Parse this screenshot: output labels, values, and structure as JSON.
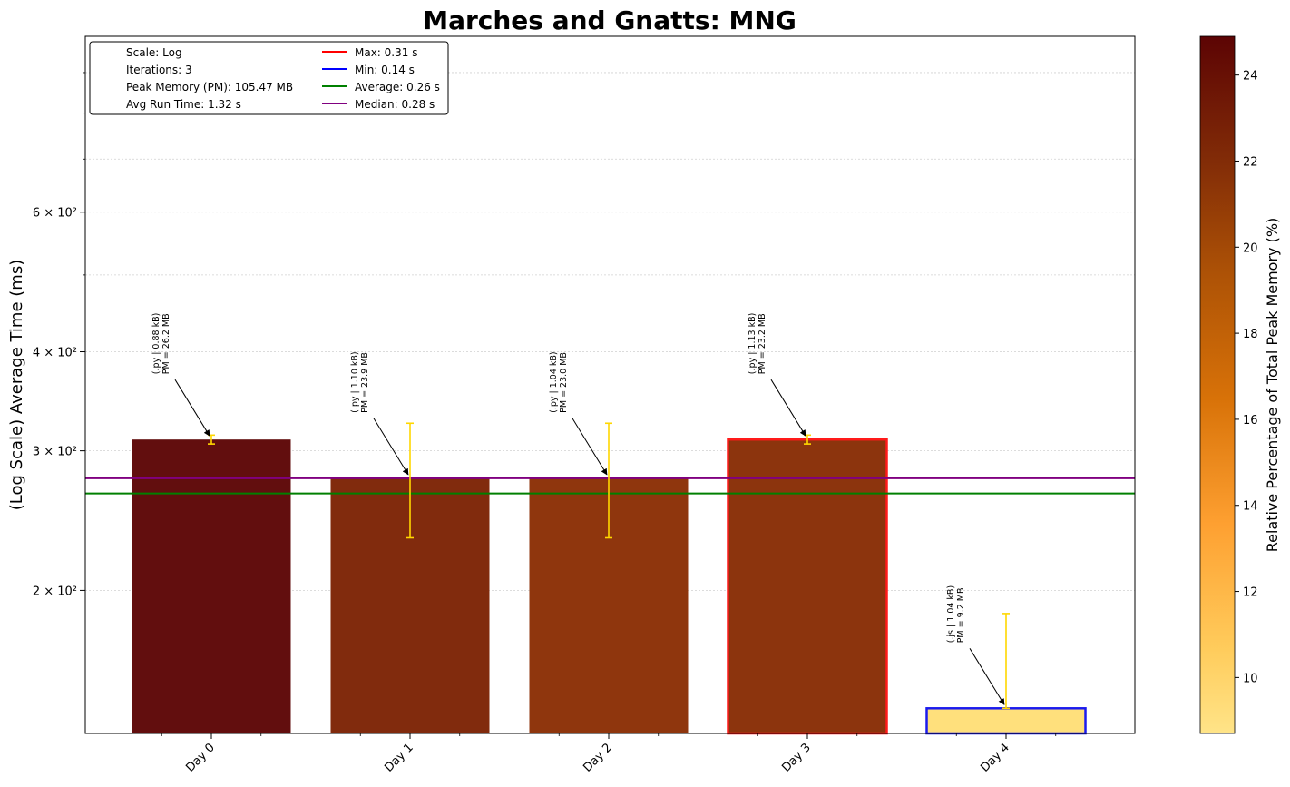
{
  "chart_data": {
    "type": "bar",
    "title": "Marches and Gnatts: MNG",
    "xlabel": "",
    "ylabel": "(Log Scale) Average Time (ms)",
    "yscale": "log",
    "ylim": [
      132,
      1000
    ],
    "ytick_labels": [
      {
        "value": 200,
        "label": "2 × 10²"
      },
      {
        "value": 300,
        "label": "3 × 10²"
      },
      {
        "value": 400,
        "label": "4 × 10²"
      },
      {
        "value": 600,
        "label": "6 × 10²"
      }
    ],
    "grid": "y, dotted",
    "categories": [
      "Day 0",
      "Day 1",
      "Day 2",
      "Day 3",
      "Day 4"
    ],
    "values": [
      310,
      277,
      277,
      310,
      142
    ],
    "errors": [
      {
        "low": 306,
        "high": 314
      },
      {
        "low": 233,
        "high": 325
      },
      {
        "low": 233,
        "high": 325
      },
      {
        "low": 306,
        "high": 314
      },
      {
        "low": 142,
        "high": 187
      }
    ],
    "bar_colors": [
      "#620e0e",
      "#812b0d",
      "#8f360d",
      "#8c340d",
      "#ffe07c"
    ],
    "bar_edges": [
      null,
      null,
      null,
      "#ff1a1a",
      "#1a1aee"
    ],
    "annotations": [
      {
        "line1": "(.py | 0.88 kB)",
        "line2": "PM = 26.2 MB"
      },
      {
        "line1": "(.py | 1.10 kB)",
        "line2": "PM = 23.9 MB"
      },
      {
        "line1": "(.py | 1.04 kB)",
        "line2": "PM = 23.0 MB"
      },
      {
        "line1": "(.py | 1.13 kB)",
        "line2": "PM = 23.2 MB"
      },
      {
        "line1": "(.js | 1.04 kB)",
        "line2": "PM = 9.2 MB"
      }
    ],
    "reference_lines": [
      {
        "name": "Max: 0.31 s",
        "color": "#ff0000",
        "value": null
      },
      {
        "name": "Min: 0.14 s",
        "color": "#0000ff",
        "value": null
      },
      {
        "name": "Average: 0.26 s",
        "color": "#008000",
        "value": 265
      },
      {
        "name": "Median: 0.28 s",
        "color": "#800080",
        "value": 277
      }
    ],
    "legend": {
      "placement": "top-left",
      "text_entries": [
        "Scale: Log",
        "Iterations: 3",
        "Peak Memory (PM): 105.47 MB",
        "Avg Run Time: 1.32 s"
      ]
    },
    "colorbar": {
      "label": "Relative Percentage of Total Peak Memory (%)",
      "range": [
        8.7,
        24.9
      ],
      "ticks": [
        10,
        12,
        14,
        16,
        18,
        20,
        22,
        24
      ],
      "colormap": "YlOrBr-like (light yellow to dark red)"
    },
    "error_color": "#ffd700"
  }
}
